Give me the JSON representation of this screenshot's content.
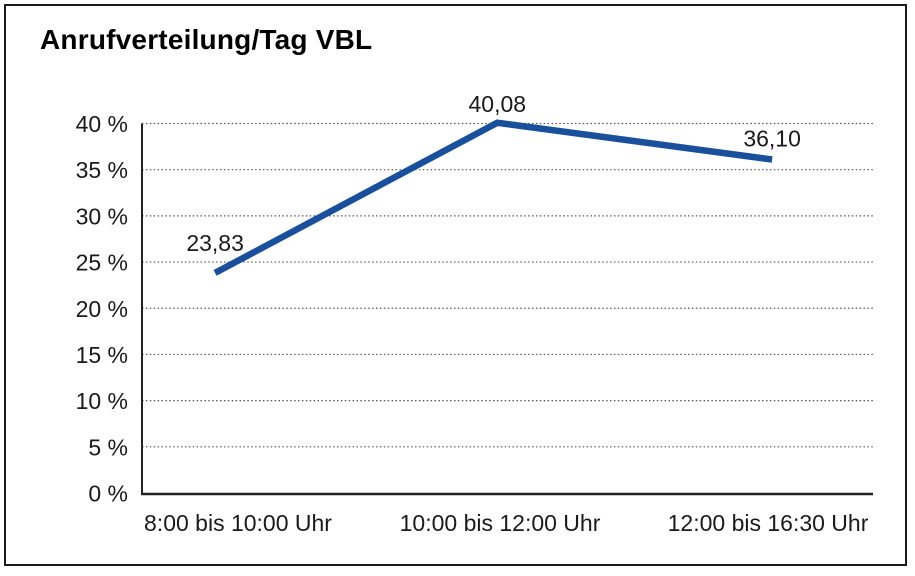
{
  "chart_data": {
    "type": "line",
    "title": "Anrufverteilung/Tag VBL",
    "categories": [
      "8:00 bis 10:00 Uhr",
      "10:00 bis 12:00 Uhr",
      "12:00 bis 16:30 Uhr"
    ],
    "values": [
      23.83,
      40.08,
      36.1
    ],
    "point_labels": [
      "23,83",
      "40,08",
      "36,10"
    ],
    "xlabel": "",
    "ylabel": "",
    "ylim": [
      0,
      40
    ],
    "ytick_values": [
      0,
      5,
      10,
      15,
      20,
      25,
      30,
      35,
      40
    ],
    "ytick_labels": [
      "0 %",
      "5 %",
      "10 %",
      "15 %",
      "20 %",
      "25 %",
      "30 %",
      "35 %",
      "40 %"
    ],
    "grid": "horizontal-dotted",
    "legend": "none",
    "line_color": "#1a4f9c",
    "text_color": "#1a1a1a",
    "frame_color": "#1a1a1a"
  }
}
